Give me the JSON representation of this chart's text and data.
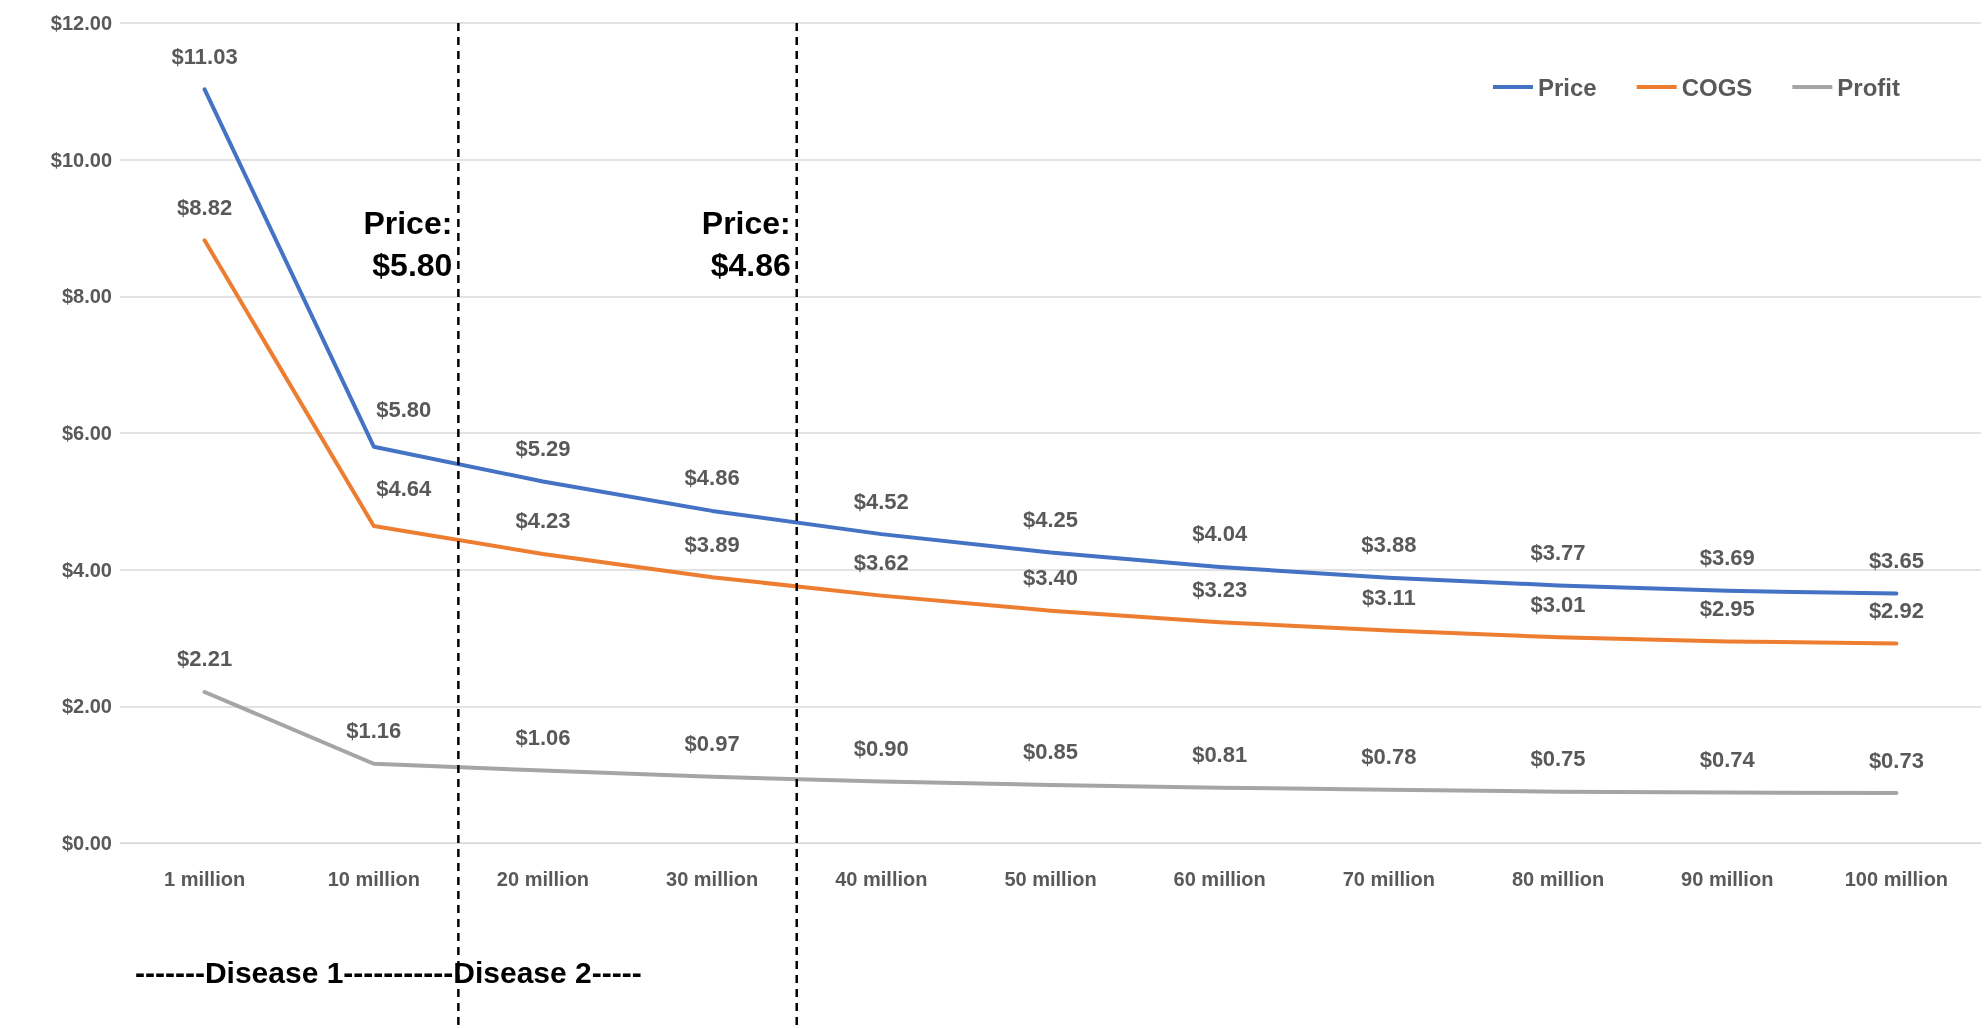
{
  "chart_data": {
    "type": "line",
    "categories": [
      "1 million",
      "10 million",
      "20 million",
      "30 million",
      "40 million",
      "50 million",
      "60 million",
      "70 million",
      "80 million",
      "90 million",
      "100 million"
    ],
    "series": [
      {
        "name": "Price",
        "color": "#4472c4",
        "values": [
          11.03,
          5.8,
          5.29,
          4.86,
          4.52,
          4.25,
          4.04,
          3.88,
          3.77,
          3.69,
          3.65
        ]
      },
      {
        "name": "COGS",
        "color": "#ed7d31",
        "values": [
          8.82,
          4.64,
          4.23,
          3.89,
          3.62,
          3.4,
          3.23,
          3.11,
          3.01,
          2.95,
          2.92
        ]
      },
      {
        "name": "Profit",
        "color": "#a5a5a5",
        "values": [
          2.21,
          1.16,
          1.06,
          0.97,
          0.9,
          0.85,
          0.81,
          0.78,
          0.75,
          0.74,
          0.73
        ]
      }
    ],
    "ylim": [
      0,
      12
    ],
    "yticks": [
      {
        "value": 0,
        "label": "$0.00"
      },
      {
        "value": 2,
        "label": "$2.00"
      },
      {
        "value": 4,
        "label": "$4.00"
      },
      {
        "value": 6,
        "label": "$6.00"
      },
      {
        "value": 8,
        "label": "$8.00"
      },
      {
        "value": 10,
        "label": "$10.00"
      },
      {
        "value": 12,
        "label": "$12.00"
      }
    ],
    "value_labels": [
      [
        "$11.03",
        "$5.80",
        "$5.29",
        "$4.86",
        "$4.52",
        "$4.25",
        "$4.04",
        "$3.88",
        "$3.77",
        "$3.69",
        "$3.65"
      ],
      [
        "$8.82",
        "$4.64",
        "$4.23",
        "$3.89",
        "$3.62",
        "$3.40",
        "$3.23",
        "$3.11",
        "$3.01",
        "$2.95",
        "$2.92"
      ],
      [
        "$2.21",
        "$1.16",
        "$1.06",
        "$0.97",
        "$0.90",
        "$0.85",
        "$0.81",
        "$0.78",
        "$0.75",
        "$0.74",
        "$0.73"
      ]
    ],
    "annotations": [
      "Price: $5.80",
      "Price: $4.86",
      "-------Disease 1-----------Disease 2-----"
    ],
    "grid": "y",
    "legend": "top right",
    "marker": "none",
    "line_style": "solid"
  }
}
